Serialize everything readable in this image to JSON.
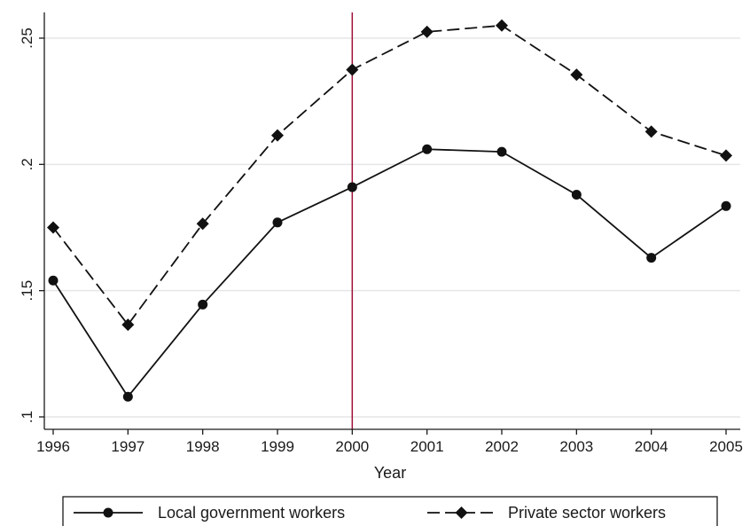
{
  "chart_data": {
    "type": "line",
    "title": "",
    "xlabel": "Year",
    "ylabel": "",
    "x": [
      1996,
      1997,
      1998,
      1999,
      2000,
      2001,
      2002,
      2003,
      2004,
      2005
    ],
    "x_tick_labels": [
      "1996",
      "1997",
      "1998",
      "1999",
      "2000",
      "2001",
      "2002",
      "2003",
      "2004",
      "2005"
    ],
    "y_ticks": [
      0.1,
      0.15,
      0.2,
      0.25
    ],
    "y_tick_labels": [
      ".1",
      ".15",
      ".2",
      ".25"
    ],
    "xlim": [
      1996,
      2005
    ],
    "ylim": [
      0.1,
      0.26
    ],
    "grid": true,
    "legend_position": "bottom",
    "reference_line": {
      "x": 2000,
      "color": "#a0103a"
    },
    "series": [
      {
        "name": "Local government workers",
        "marker": "circle",
        "line_style": "solid",
        "color": "#111111",
        "values": [
          0.154,
          0.108,
          0.1445,
          0.177,
          0.191,
          0.206,
          0.205,
          0.188,
          0.163,
          0.1835
        ]
      },
      {
        "name": "Private sector workers",
        "marker": "diamond",
        "line_style": "dashed",
        "color": "#111111",
        "values": [
          0.175,
          0.1365,
          0.1765,
          0.2115,
          0.2375,
          0.2525,
          0.255,
          0.2355,
          0.213,
          0.2035
        ]
      }
    ]
  }
}
